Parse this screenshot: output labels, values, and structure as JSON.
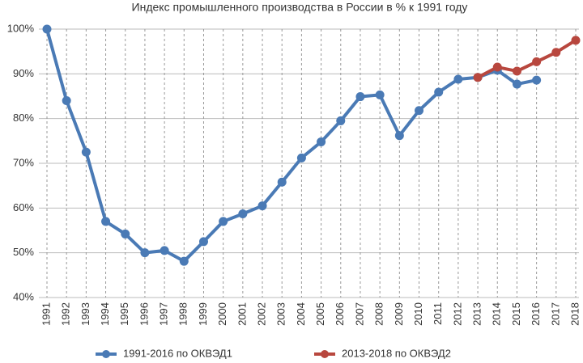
{
  "chart_data": {
    "type": "line",
    "title": "Индекс промышленного производства в России в % к 1991 году",
    "categories": [
      "1991",
      "1992",
      "1993",
      "1994",
      "1995",
      "1996",
      "1997",
      "1998",
      "1999",
      "2000",
      "2001",
      "2002",
      "2003",
      "2004",
      "2005",
      "2006",
      "2007",
      "2008",
      "2009",
      "2010",
      "2011",
      "2012",
      "2013",
      "2014",
      "2015",
      "2016",
      "2017",
      "2018"
    ],
    "series": [
      {
        "name": "1991-2016 по ОКВЭД1",
        "color": "#4a7ab5",
        "values": [
          100,
          84,
          72.5,
          57,
          54.2,
          50,
          50.5,
          48.1,
          52.5,
          57,
          58.7,
          60.5,
          65.8,
          71.2,
          74.8,
          79.5,
          84.9,
          85.3,
          76.2,
          81.8,
          85.9,
          88.8,
          89.2,
          90.8,
          87.7,
          88.6,
          null,
          null
        ]
      },
      {
        "name": "2013-2018 по ОКВЭД2",
        "color": "#b8473e",
        "values": [
          null,
          null,
          null,
          null,
          null,
          null,
          null,
          null,
          null,
          null,
          null,
          null,
          null,
          null,
          null,
          null,
          null,
          null,
          null,
          null,
          null,
          null,
          89.2,
          91.5,
          90.6,
          92.7,
          94.8,
          97.5
        ]
      }
    ],
    "ylim": [
      40,
      100
    ],
    "yticks": [
      {
        "value": 40,
        "label": "40%"
      },
      {
        "value": 50,
        "label": "50%"
      },
      {
        "value": 60,
        "label": "60%"
      },
      {
        "value": 70,
        "label": "70%"
      },
      {
        "value": 80,
        "label": "80%"
      },
      {
        "value": 90,
        "label": "90%"
      },
      {
        "value": 100,
        "label": "100%"
      }
    ],
    "grid": true
  }
}
